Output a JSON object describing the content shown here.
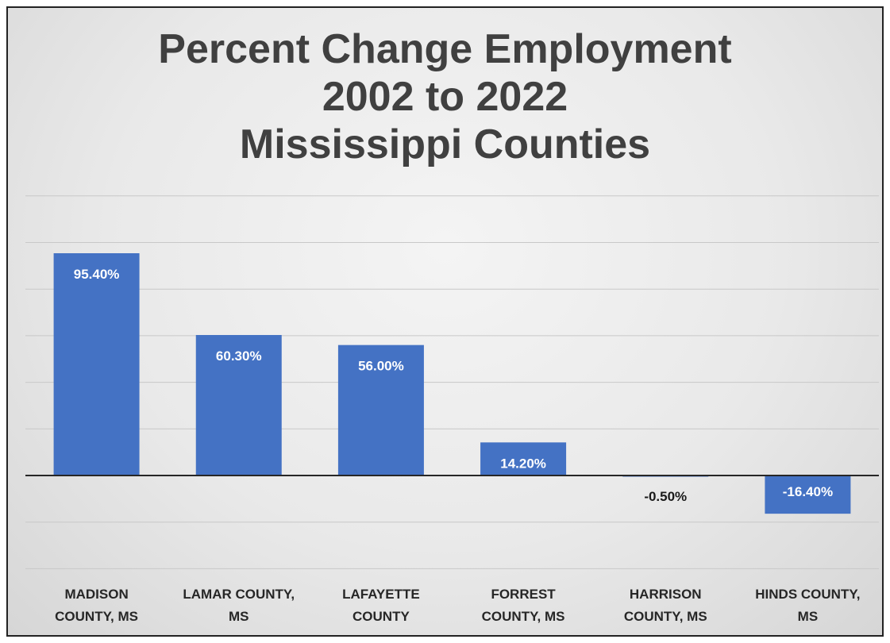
{
  "chart_data": {
    "type": "bar",
    "title_lines": [
      "Percent Change Employment",
      "2002 to 2022",
      "Mississippi Counties"
    ],
    "categories": [
      [
        "MADISON",
        "COUNTY, MS"
      ],
      [
        "LAMAR COUNTY,",
        "MS"
      ],
      [
        "LAFAYETTE",
        "COUNTY"
      ],
      [
        "FORREST",
        "COUNTY, MS"
      ],
      [
        "HARRISON",
        "COUNTY, MS"
      ],
      [
        "HINDS COUNTY,",
        "MS"
      ]
    ],
    "values": [
      95.4,
      60.3,
      56.0,
      14.2,
      -0.5,
      -16.4
    ],
    "data_labels": [
      "95.40%",
      "60.30%",
      "56.00%",
      "14.20%",
      "-0.50%",
      "-16.40%"
    ],
    "xlabel": "",
    "ylabel": "",
    "ylim": [
      -40,
      120
    ],
    "grid": true,
    "legend": "none",
    "colors": {
      "bar": "#4472c4",
      "label_inside": "#ffffff",
      "label_outside": "#1a1a1a",
      "grid": "#c8c8c8",
      "zero_line": "#262626"
    }
  }
}
